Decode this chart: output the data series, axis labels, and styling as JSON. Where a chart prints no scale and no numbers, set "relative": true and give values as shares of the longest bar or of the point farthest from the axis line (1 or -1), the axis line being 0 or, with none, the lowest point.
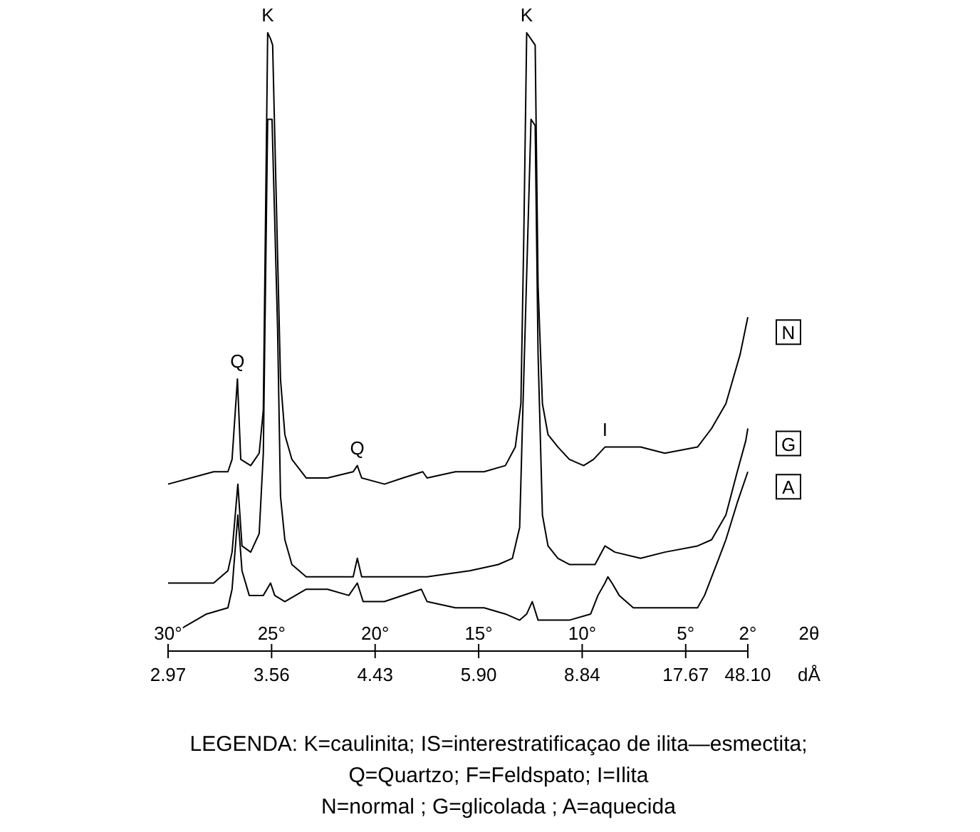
{
  "chart_data": {
    "type": "line",
    "relative": true,
    "xlabel": "2θ",
    "x2label": "dÅ",
    "xlim": [
      30,
      2
    ],
    "xticks": [
      {
        "value": 30,
        "label": "30°"
      },
      {
        "value": 25,
        "label": "25°"
      },
      {
        "value": 20,
        "label": "20°"
      },
      {
        "value": 15,
        "label": "15°"
      },
      {
        "value": 10,
        "label": "10°"
      },
      {
        "value": 5,
        "label": "5°"
      },
      {
        "value": 2,
        "label": "2°"
      }
    ],
    "series": [
      {
        "name": "N",
        "color": "#000000",
        "x": [
          30,
          27.8,
          27.11,
          26.91,
          26.65,
          26.49,
          26.01,
          25.6,
          25.4,
          25.19,
          25.05,
          24.95,
          24.57,
          24.36,
          24.02,
          23.33,
          22.3,
          21.06,
          20.86,
          20.65,
          19.55,
          18.66,
          17.7,
          17.49,
          16.12,
          14.74,
          13.71,
          13.23,
          12.96,
          12.82,
          12.68,
          12.27,
          12.13,
          11.92,
          11.65,
          11.17,
          10.62,
          9.93,
          9.45,
          8.9,
          8.42,
          7.18,
          6.01,
          4.43,
          3.75,
          3.06,
          2.37,
          2
        ],
        "values": [
          0.27,
          0.29,
          0.29,
          0.31,
          0.44,
          0.31,
          0.3,
          0.32,
          0.39,
          1.0,
          0.99,
          0.98,
          0.44,
          0.35,
          0.31,
          0.28,
          0.28,
          0.29,
          0.3,
          0.28,
          0.27,
          0.28,
          0.29,
          0.28,
          0.29,
          0.29,
          0.3,
          0.33,
          0.4,
          0.67,
          1.0,
          0.98,
          0.59,
          0.4,
          0.35,
          0.33,
          0.31,
          0.3,
          0.31,
          0.33,
          0.33,
          0.33,
          0.32,
          0.33,
          0.36,
          0.4,
          0.48,
          0.54
        ]
      },
      {
        "name": "G",
        "color": "#000000",
        "x": [
          30,
          27.8,
          27.11,
          26.91,
          26.63,
          26.43,
          26.01,
          25.6,
          25.4,
          25.19,
          24.98,
          24.71,
          24.57,
          24.36,
          24.02,
          23.33,
          22.3,
          21.06,
          20.86,
          20.65,
          19.55,
          17.49,
          15.43,
          14.05,
          13.37,
          13.02,
          12.89,
          12.47,
          12.27,
          12.13,
          11.92,
          11.65,
          11.17,
          10.62,
          9.93,
          9.38,
          8.9,
          8.42,
          7.18,
          6.01,
          4.43,
          3.75,
          3.06,
          2.51,
          2.1,
          2
        ],
        "values": [
          0.11,
          0.11,
          0.13,
          0.16,
          0.27,
          0.17,
          0.16,
          0.19,
          0.32,
          0.86,
          0.86,
          0.52,
          0.25,
          0.18,
          0.14,
          0.12,
          0.12,
          0.12,
          0.15,
          0.12,
          0.12,
          0.12,
          0.13,
          0.14,
          0.15,
          0.2,
          0.36,
          0.86,
          0.85,
          0.48,
          0.22,
          0.17,
          0.15,
          0.14,
          0.14,
          0.14,
          0.17,
          0.16,
          0.15,
          0.16,
          0.17,
          0.18,
          0.22,
          0.29,
          0.34,
          0.36
        ]
      },
      {
        "name": "A",
        "color": "#000000",
        "x": [
          30,
          29.18,
          28.14,
          27.11,
          26.91,
          26.63,
          26.43,
          26.08,
          25.4,
          25.05,
          24.85,
          24.36,
          23.33,
          22.3,
          21.27,
          20.86,
          20.58,
          19.55,
          17.77,
          17.49,
          16.12,
          14.74,
          13.71,
          13.02,
          12.68,
          12.41,
          12.13,
          11.31,
          10.62,
          9.59,
          9.24,
          8.9,
          8.76,
          8.56,
          8.21,
          7.53,
          6.49,
          5.12,
          4.43,
          4.09,
          3.4,
          3.06,
          2.51,
          2
        ],
        "values": [
          0.02,
          0.04,
          0.06,
          0.07,
          0.1,
          0.22,
          0.13,
          0.09,
          0.09,
          0.11,
          0.09,
          0.08,
          0.1,
          0.1,
          0.09,
          0.11,
          0.08,
          0.08,
          0.1,
          0.08,
          0.07,
          0.07,
          0.06,
          0.05,
          0.06,
          0.08,
          0.05,
          0.05,
          0.05,
          0.06,
          0.09,
          0.11,
          0.12,
          0.11,
          0.09,
          0.07,
          0.07,
          0.07,
          0.07,
          0.09,
          0.15,
          0.18,
          0.24,
          0.29
        ]
      }
    ],
    "annotations": [
      {
        "text": "K",
        "x": 25.19,
        "y": 1.0
      },
      {
        "text": "K",
        "x": 12.68,
        "y": 1.0
      },
      {
        "text": "Q",
        "x": 26.65,
        "y": 0.44
      },
      {
        "text": "Q",
        "x": 20.86,
        "y": 0.3
      },
      {
        "text": "I",
        "x": 8.9,
        "y": 0.33
      },
      "2.97",
      "3.56",
      "4.43",
      "5.90",
      "8.84",
      "17.67",
      "48.10",
      "LEGENDA: K=caulinita; IS=interestratificaçao de ilita—esmectita;",
      "Q=Quartzo; F=Feldspato; I=Ilita",
      "N=normal ; G=glicolada ; A=aquecida"
    ]
  }
}
